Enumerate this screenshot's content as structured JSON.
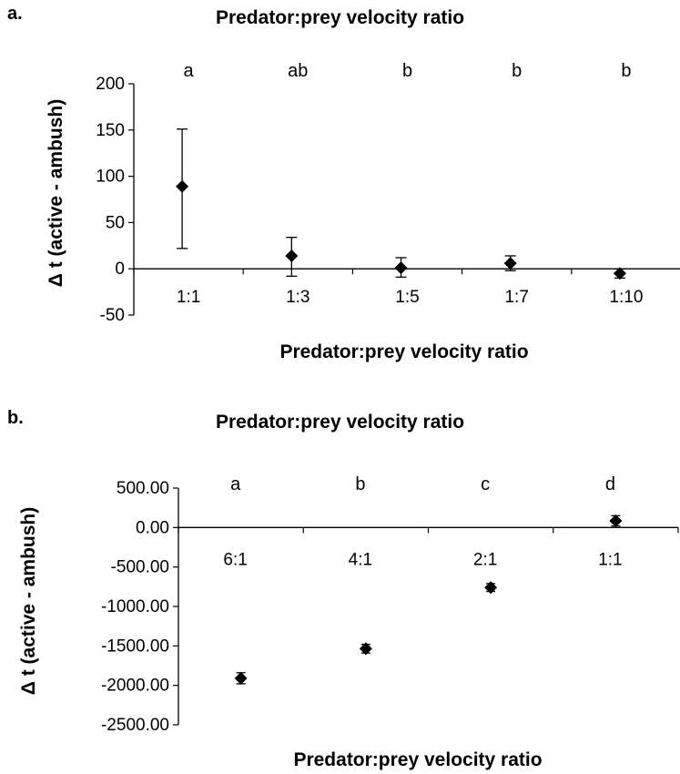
{
  "chart_data": [
    {
      "panel_label": "a.",
      "type": "scatter",
      "title": "Predator:prey velocity ratio",
      "xlabel": "Predator:prey velocity ratio",
      "ylabel": "Δ t (active - ambush)",
      "categories": [
        "1:1",
        "1:3",
        "1:5",
        "1:7",
        "1:10"
      ],
      "values": [
        89,
        14,
        1,
        6,
        -5
      ],
      "error_low": [
        22,
        -8,
        -9,
        -2,
        -10
      ],
      "error_high": [
        151,
        34,
        12,
        14,
        0
      ],
      "significance_letters": [
        "a",
        "ab",
        "b",
        "b",
        "b"
      ],
      "ylim": [
        -50,
        200
      ],
      "yticks": [
        "-50",
        "0",
        "50",
        "100",
        "150",
        "200"
      ],
      "ytick_values": [
        -50,
        0,
        50,
        100,
        150,
        200
      ],
      "marker": "diamond",
      "grid": false,
      "x_labels_position": "below zero line"
    },
    {
      "panel_label": "b.",
      "type": "scatter",
      "title": "Predator:prey velocity ratio",
      "xlabel": "Predator:prey velocity ratio",
      "ylabel": "Δ t (active - ambush)",
      "categories": [
        "6:1",
        "4:1",
        "2:1",
        "1:1"
      ],
      "values": [
        -1910,
        -1535,
        -760,
        85
      ],
      "error_low": [
        -1980,
        -1590,
        -810,
        20
      ],
      "error_high": [
        -1840,
        -1480,
        -710,
        150
      ],
      "significance_letters": [
        "a",
        "b",
        "c",
        "d"
      ],
      "ylim": [
        -2500,
        500
      ],
      "yticks": [
        "-2500.00",
        "-2000.00",
        "-1500.00",
        "-1000.00",
        "-500.00",
        "0.00",
        "500.00"
      ],
      "ytick_values": [
        -2500,
        -2000,
        -1500,
        -1000,
        -500,
        0,
        500
      ],
      "marker": "diamond",
      "grid": false,
      "x_labels_position": "below zero line"
    }
  ]
}
